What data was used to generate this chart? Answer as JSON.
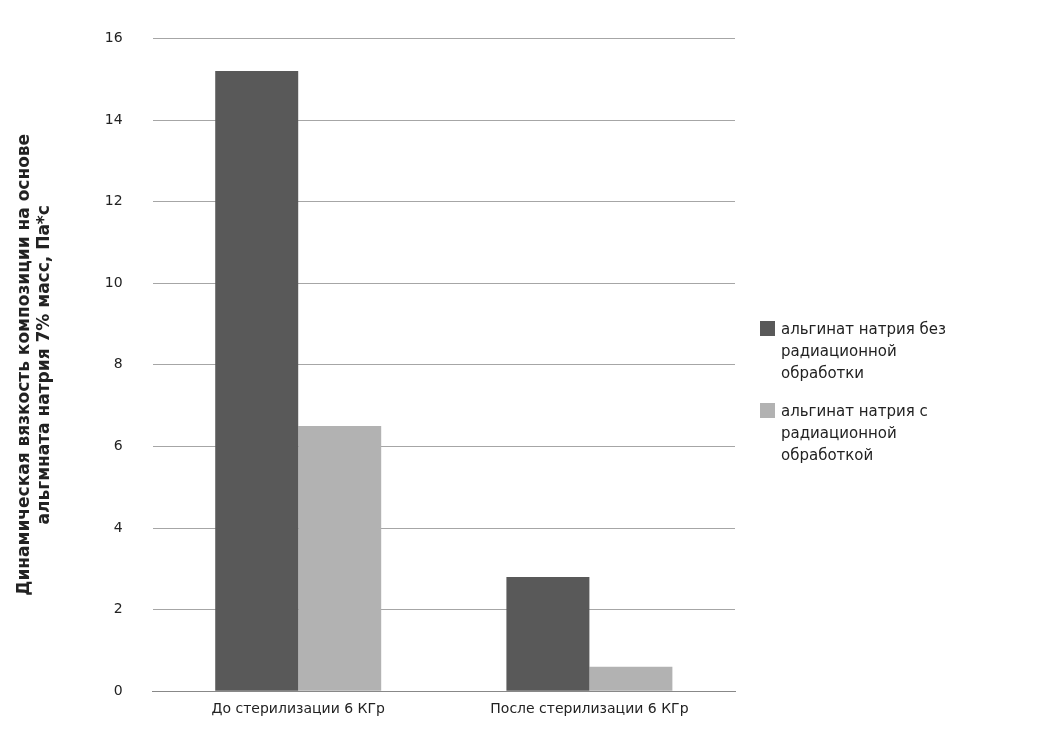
{
  "chart_data": {
    "type": "bar",
    "ylabel": "Динамическая вязкость композиции на основе\nальгмната натрия 7% масс, Па*с",
    "categories": [
      "До стерилизации 6 КГр",
      "После стерилизации 6 КГр"
    ],
    "series": [
      {
        "name": "альгинат натрия без радиационной обработки",
        "color": "#595959",
        "values": [
          15.2,
          2.8
        ]
      },
      {
        "name": "альгинат натрия  с радиационной обработкой",
        "color": "#b2b2b2",
        "values": [
          6.5,
          0.6
        ]
      }
    ],
    "ylim": [
      0,
      16
    ],
    "yticks": [
      0,
      2,
      4,
      6,
      8,
      10,
      12,
      14,
      16
    ],
    "grid": "y",
    "legend": "right"
  }
}
